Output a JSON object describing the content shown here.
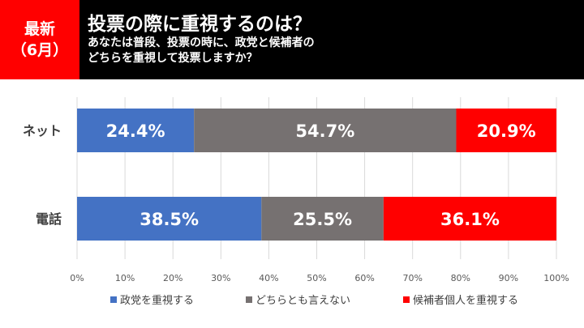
{
  "header": {
    "badge_line1": "最新",
    "badge_line2": "（6月）",
    "title": "投票の際に重視するのは？",
    "subtitle": "あなたは普段、投票の時に、政党と候補者のどちらを重視して投票しますか？"
  },
  "colors": {
    "header_bg": "#000000",
    "badge_bg": "#ff0000"
  },
  "chart_data": {
    "type": "bar",
    "orientation": "horizontal",
    "stacked": true,
    "percent_scale": true,
    "categories": [
      "ネット",
      "電話"
    ],
    "series": [
      {
        "name": "政党を重視する",
        "color": "#4472c4",
        "values": [
          24.4,
          38.5
        ],
        "labels": [
          "24.4%",
          "38.5%"
        ]
      },
      {
        "name": "どちらとも言えない",
        "color": "#767171",
        "values": [
          54.7,
          25.5
        ],
        "labels": [
          "54.7%",
          "25.5%"
        ]
      },
      {
        "name": "候補者個人を重視する",
        "color": "#ff0000",
        "values": [
          20.9,
          36.1
        ],
        "labels": [
          "20.9%",
          "36.1%"
        ]
      }
    ],
    "xlim": [
      0,
      100
    ],
    "xticks": [
      "0%",
      "10%",
      "20%",
      "30%",
      "40%",
      "50%",
      "60%",
      "70%",
      "80%",
      "90%",
      "100%"
    ],
    "grid": true,
    "legend_position": "bottom"
  }
}
